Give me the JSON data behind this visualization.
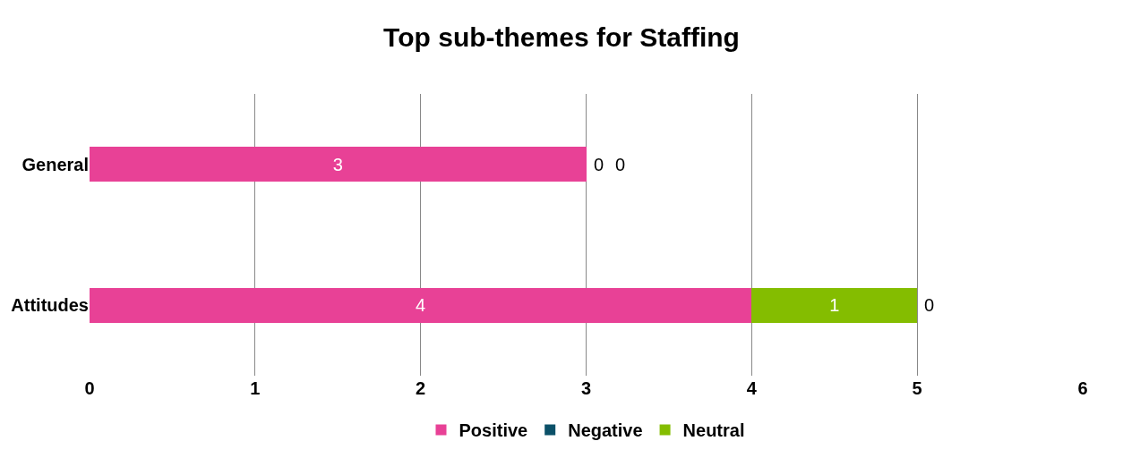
{
  "chart_data": {
    "type": "bar",
    "title": "Top sub-themes for Staffing",
    "orientation": "horizontal",
    "stacked": true,
    "categories": [
      "General",
      "Attitudes"
    ],
    "series": [
      {
        "name": "Positive",
        "color": "#e84196",
        "values": [
          3,
          4
        ]
      },
      {
        "name": "Negative",
        "color": "#0b5068",
        "values": [
          0,
          0
        ]
      },
      {
        "name": "Neutral",
        "color": "#84bd00",
        "values": [
          0,
          1
        ]
      }
    ],
    "xlim": [
      0,
      6
    ],
    "xticks": [
      0,
      1,
      2,
      3,
      4,
      5,
      6
    ],
    "grid": "x",
    "legend": "bottom",
    "data_labels": true
  }
}
